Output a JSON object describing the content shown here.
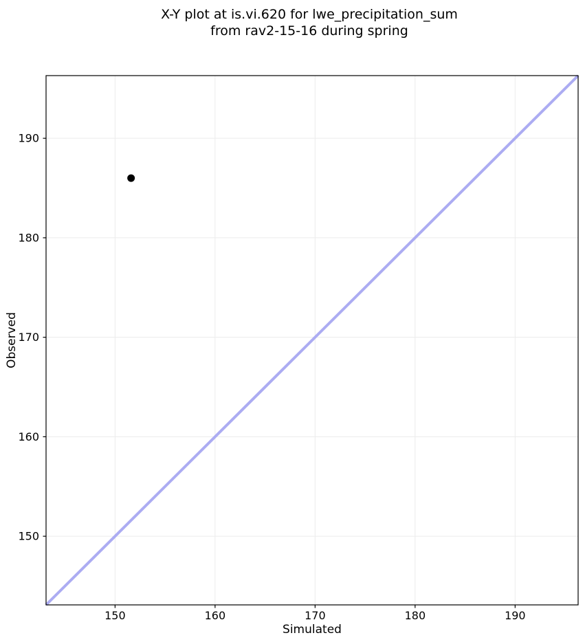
{
  "chart_data": {
    "type": "scatter",
    "title_lines": [
      "X-Y plot at is.vi.620 for lwe_precipitation_sum",
      "from rav2-15-16 during spring"
    ],
    "xlabel": "Simulated",
    "ylabel": "Observed",
    "xlim": [
      143.1,
      196.3
    ],
    "ylim": [
      143.1,
      196.3
    ],
    "x_ticks": [
      150,
      160,
      170,
      180,
      190
    ],
    "y_ticks": [
      150,
      160,
      170,
      180,
      190
    ],
    "x_tick_labels": [
      "150",
      "160",
      "170",
      "180",
      "190"
    ],
    "y_tick_labels": [
      "150",
      "160",
      "170",
      "180",
      "190"
    ],
    "grid": true,
    "legend": false,
    "series": [
      {
        "name": "simulated-vs-observed",
        "type": "scatter",
        "points": [
          {
            "x": 151.6,
            "y": 186.0
          }
        ],
        "color": "#000000",
        "marker": "circle",
        "marker_radius": 5.5
      }
    ],
    "reference_line": {
      "type": "identity",
      "x1": 143.1,
      "y1": 143.1,
      "x2": 196.3,
      "y2": 196.3,
      "color": "#acacf2",
      "width": 4
    },
    "colors": {
      "background": "#ffffff",
      "grid": "#ececec",
      "axis": "#000000",
      "text": "#000000"
    }
  }
}
